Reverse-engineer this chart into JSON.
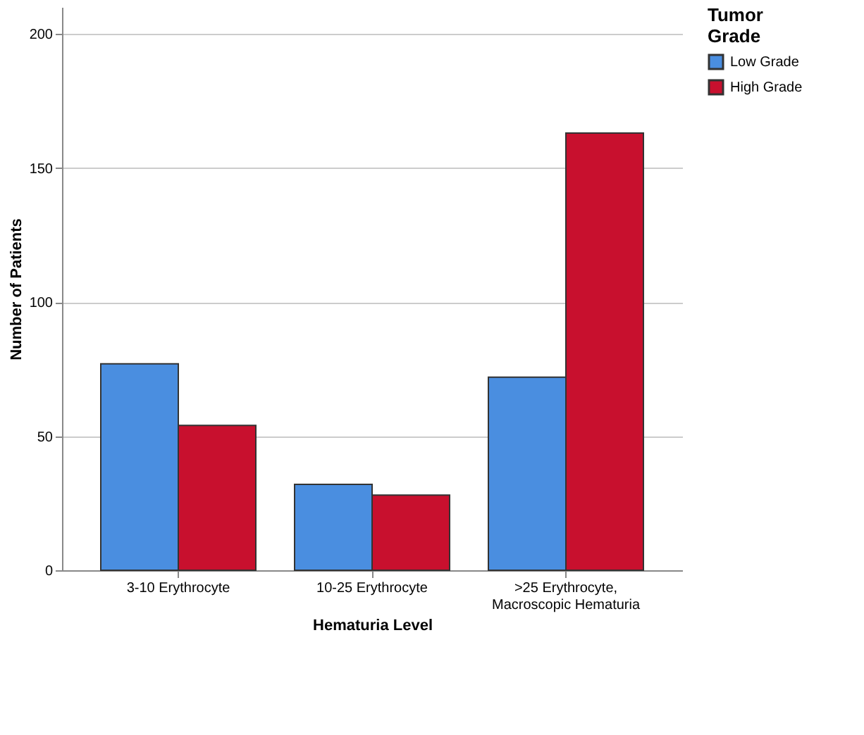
{
  "chart_data": {
    "type": "bar",
    "xlabel": "Hematuria Level",
    "ylabel": "Number of Patients",
    "legend_title": "Tumor Grade",
    "categories": [
      "3-10 Erythrocyte",
      "10-25 Erythrocyte",
      ">25 Erythrocyte, Macroscopic Hematuria"
    ],
    "series": [
      {
        "name": "Low Grade",
        "color": "#4a8ee0",
        "values": [
          77,
          32,
          72
        ]
      },
      {
        "name": "High Grade",
        "color": "#c8102e",
        "values": [
          54,
          28,
          163
        ]
      }
    ],
    "ylim": [
      0,
      210
    ],
    "yticks": [
      0,
      50,
      100,
      150,
      200
    ],
    "grid": "y",
    "legend": "top right"
  }
}
